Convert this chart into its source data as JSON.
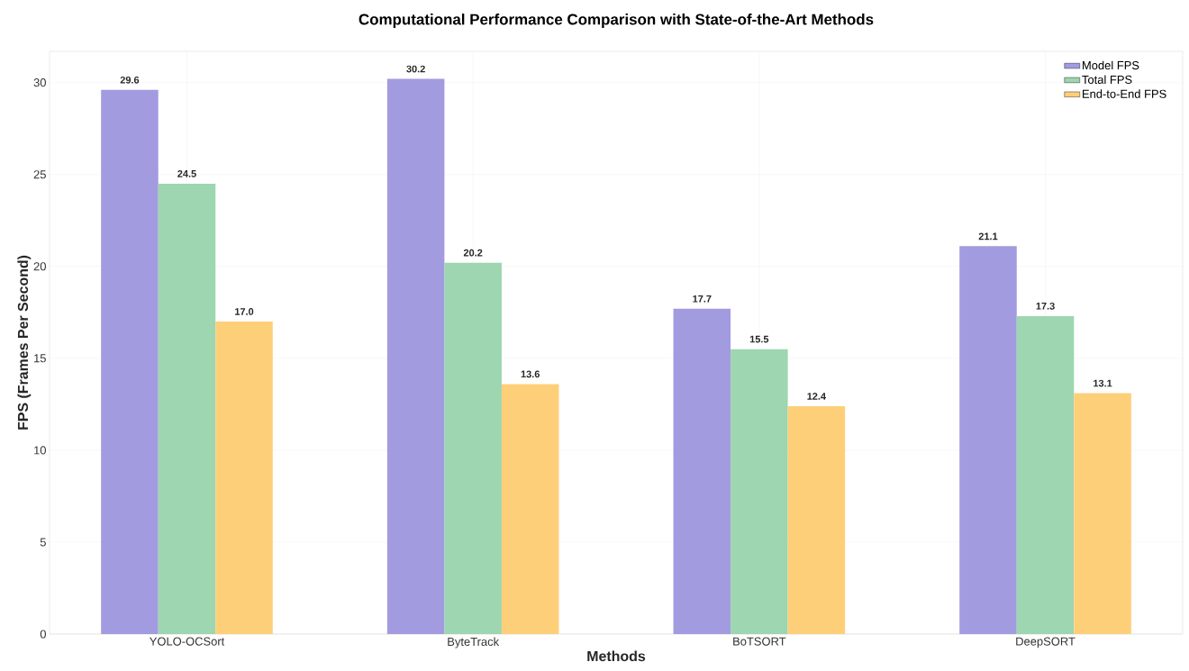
{
  "chart_data": {
    "type": "bar",
    "title": "Computational Performance Comparison with State-of-the-Art Methods",
    "xlabel": "Methods",
    "ylabel": "FPS (Frames Per Second)",
    "categories": [
      "YOLO-OCSort",
      "ByteTrack",
      "BoTSORT",
      "DeepSORT"
    ],
    "series": [
      {
        "name": "Model FPS",
        "color": "#a29be0",
        "values": [
          29.6,
          30.2,
          17.7,
          21.1
        ],
        "value_labels": [
          "29.6",
          "30.2",
          "17.7",
          "21.1"
        ]
      },
      {
        "name": "Total FPS",
        "color": "#9dd6b0",
        "values": [
          24.5,
          20.2,
          15.5,
          17.3
        ],
        "value_labels": [
          "24.5",
          "20.2",
          "15.5",
          "17.3"
        ]
      },
      {
        "name": "End-to-End FPS",
        "color": "#fecf79",
        "values": [
          17.0,
          13.6,
          12.4,
          13.1
        ],
        "value_labels": [
          "17.0",
          "13.6",
          "12.4",
          "13.1"
        ]
      }
    ],
    "ylim": [
      0,
      31.7
    ],
    "yticks": [
      0,
      5,
      10,
      15,
      20,
      25,
      30
    ],
    "grid": true,
    "legend": "top right"
  }
}
